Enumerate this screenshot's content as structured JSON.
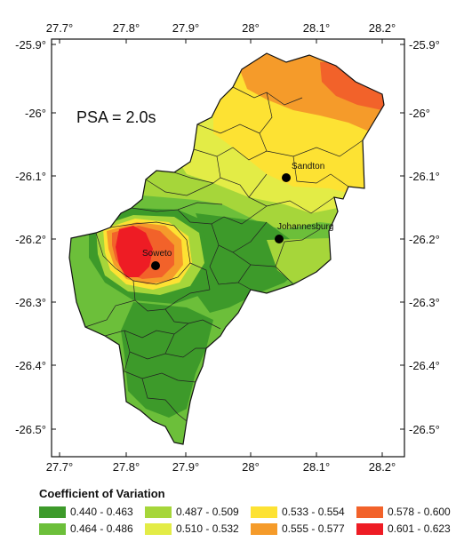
{
  "map": {
    "title": "PSA = 2.0s",
    "lon_ticks": [
      "27.7°",
      "27.8°",
      "27.9°",
      "28°",
      "28.1°",
      "28.2°"
    ],
    "lat_ticks": [
      "-25.9°",
      "-26°",
      "-26.1°",
      "-26.2°",
      "-26.3°",
      "-26.4°",
      "-26.5°"
    ],
    "places": [
      {
        "name": "Sandton"
      },
      {
        "name": "Johannesburg"
      },
      {
        "name": "Soweto"
      }
    ]
  },
  "legend": {
    "title": "Coefficient of Variation",
    "items": [
      {
        "label": "0.440 - 0.463",
        "color": "#3d9a2a"
      },
      {
        "label": "0.487 - 0.509",
        "color": "#a6d63a"
      },
      {
        "label": "0.533 - 0.554",
        "color": "#fde233"
      },
      {
        "label": "0.578 - 0.600",
        "color": "#f2622a"
      },
      {
        "label": "0.464 - 0.486",
        "color": "#6cbf3a"
      },
      {
        "label": "0.510 - 0.532",
        "color": "#e3ec46"
      },
      {
        "label": "0.555 - 0.577",
        "color": "#f59b2a"
      },
      {
        "label": "0.601 - 0.623",
        "color": "#ee1c24"
      }
    ]
  }
}
